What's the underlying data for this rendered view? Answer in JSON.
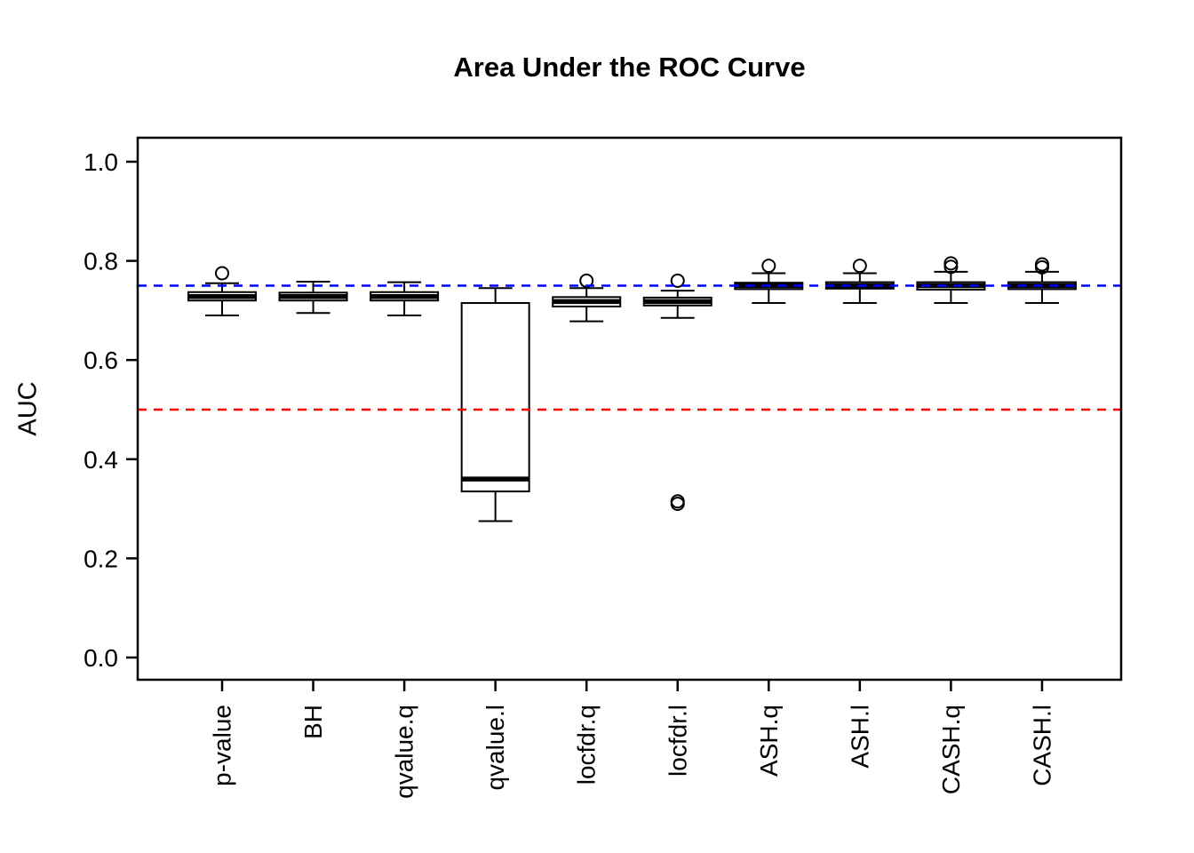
{
  "title": "Area Under the ROC Curve",
  "ylabel": "AUC",
  "colors": {
    "box_fill": "#ffffff",
    "box_stroke": "#000000",
    "axis": "#000000",
    "background": "#ffffff",
    "ref_blue": "#0000ff",
    "ref_red": "#ff0000"
  },
  "chart_data": {
    "type": "boxplot",
    "title": "Area Under the ROC Curve",
    "xlabel": "",
    "ylabel": "AUC",
    "ylim": [
      0.0,
      1.0
    ],
    "yticks": [
      0.0,
      0.2,
      0.4,
      0.6,
      0.8,
      1.0
    ],
    "ytick_labels": [
      "0.0",
      "0.2",
      "0.4",
      "0.6",
      "0.8",
      "1.0"
    ],
    "grid": false,
    "legend": "none",
    "categories": [
      "p-value",
      "BH",
      "qvalue.q",
      "qvalue.l",
      "locfdr.q",
      "locfdr.l",
      "ASH.q",
      "ASH.l",
      "CASH.q",
      "CASH.l"
    ],
    "boxes": [
      {
        "label": "p-value",
        "whisker_low": 0.69,
        "q1": 0.72,
        "median": 0.728,
        "q3": 0.737,
        "whisker_high": 0.755,
        "outliers": [
          0.775
        ]
      },
      {
        "label": "BH",
        "whisker_low": 0.695,
        "q1": 0.72,
        "median": 0.728,
        "q3": 0.736,
        "whisker_high": 0.758,
        "outliers": []
      },
      {
        "label": "qvalue.q",
        "whisker_low": 0.69,
        "q1": 0.72,
        "median": 0.728,
        "q3": 0.737,
        "whisker_high": 0.757,
        "outliers": []
      },
      {
        "label": "qvalue.l",
        "whisker_low": 0.275,
        "q1": 0.335,
        "median": 0.36,
        "q3": 0.715,
        "whisker_high": 0.745,
        "outliers": []
      },
      {
        "label": "locfdr.q",
        "whisker_low": 0.678,
        "q1": 0.708,
        "median": 0.718,
        "q3": 0.727,
        "whisker_high": 0.745,
        "outliers": [
          0.76
        ]
      },
      {
        "label": "locfdr.l",
        "whisker_low": 0.685,
        "q1": 0.71,
        "median": 0.718,
        "q3": 0.726,
        "whisker_high": 0.74,
        "outliers": [
          0.76,
          0.315,
          0.31
        ]
      },
      {
        "label": "ASH.q",
        "whisker_low": 0.715,
        "q1": 0.743,
        "median": 0.75,
        "q3": 0.756,
        "whisker_high": 0.775,
        "outliers": [
          0.79
        ]
      },
      {
        "label": "ASH.l",
        "whisker_low": 0.715,
        "q1": 0.744,
        "median": 0.75,
        "q3": 0.757,
        "whisker_high": 0.775,
        "outliers": [
          0.79
        ]
      },
      {
        "label": "CASH.q",
        "whisker_low": 0.715,
        "q1": 0.742,
        "median": 0.75,
        "q3": 0.757,
        "whisker_high": 0.778,
        "outliers": [
          0.795,
          0.788
        ]
      },
      {
        "label": "CASH.l",
        "whisker_low": 0.715,
        "q1": 0.743,
        "median": 0.75,
        "q3": 0.757,
        "whisker_high": 0.778,
        "outliers": [
          0.793,
          0.787
        ]
      }
    ],
    "reference_lines": [
      {
        "value": 0.75,
        "color": "#0000ff",
        "style": "dashed",
        "name": "blue-reference-line"
      },
      {
        "value": 0.5,
        "color": "#ff0000",
        "style": "dashed",
        "name": "red-reference-line"
      }
    ]
  }
}
